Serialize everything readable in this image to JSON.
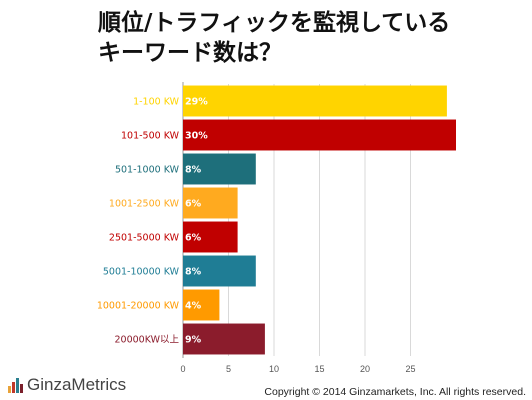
{
  "title_lines": [
    "順位/トラフィックを監視している",
    "キーワード数は？"
  ],
  "brand": {
    "name": "GinzaMetrics"
  },
  "copyright": "Copyright © 2014 Ginzamarkets, Inc. All rights reserved.",
  "chart_data": {
    "type": "bar",
    "orientation": "horizontal",
    "title": "順位/トラフィックを監視している キーワード数は？",
    "categories": [
      "1-100 KW",
      "101-500 KW",
      "501-1000 KW",
      "1001-2500 KW",
      "2501-5000 KW",
      "5001-10000 KW",
      "10001-20000 KW",
      "20000KW以上"
    ],
    "values": [
      29,
      30,
      8,
      6,
      6,
      8,
      4,
      9
    ],
    "data_labels": [
      "29%",
      "30%",
      "8%",
      "6%",
      "6%",
      "8%",
      "4%",
      "9%"
    ],
    "colors": [
      "#ffd400",
      "#c00000",
      "#1e6f7b",
      "#ffaa1f",
      "#c00000",
      "#1f7d95",
      "#ff9a00",
      "#8b1c2c"
    ],
    "xlim": [
      0,
      30
    ],
    "xticks": [
      0,
      5,
      10,
      15,
      20,
      25
    ],
    "grid": true,
    "xlabel": "",
    "ylabel": ""
  }
}
